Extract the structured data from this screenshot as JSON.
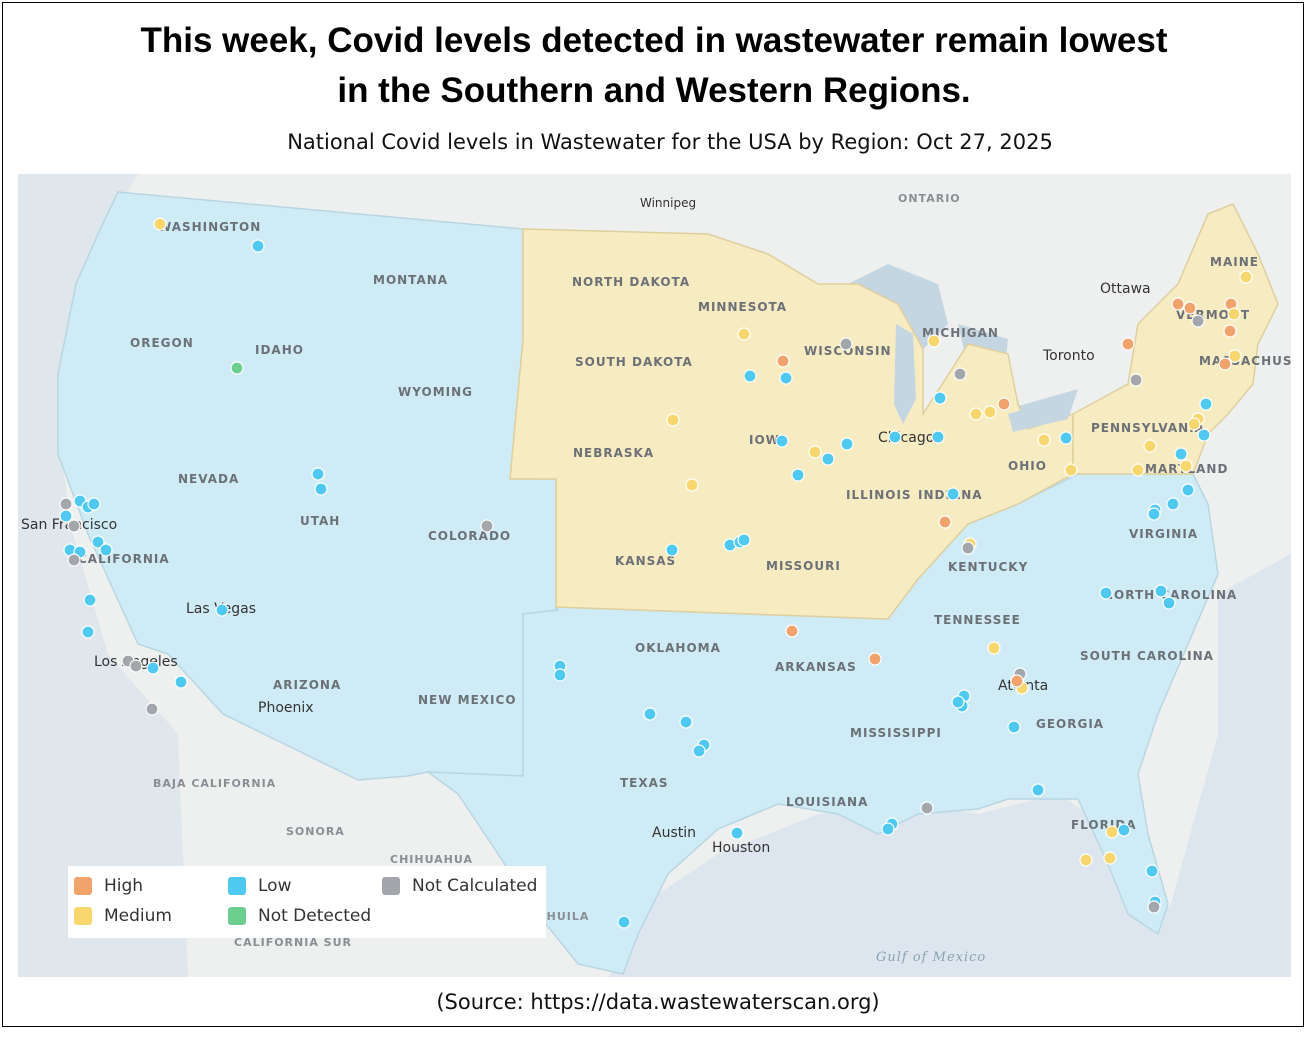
{
  "header": {
    "title_line1": "This week, Covid levels detected in wastewater remain lowest",
    "title_line2": "in the Southern and Western Regions.",
    "subtitle": "National Covid levels in Wastewater for the USA by Region: Oct 27, 2025"
  },
  "colors": {
    "west_region": "#cfecf6",
    "south_region": "#cfecf6",
    "midwest_region": "#f7ebc2",
    "northeast_region": "#f7ebc2",
    "high": "#f0a46b",
    "medium": "#f7d66e",
    "low": "#4fc9f0",
    "not_detected": "#6dcf8f",
    "not_calculated": "#a3a6ab"
  },
  "legend": {
    "high": "High",
    "medium": "Medium",
    "low": "Low",
    "not_detected": "Not Detected",
    "not_calculated": "Not Calculated"
  },
  "map_labels": {
    "states": [
      "WASHINGTON",
      "MONTANA",
      "OREGON",
      "IDAHO",
      "WYOMING",
      "NEVADA",
      "UTAH",
      "COLORADO",
      "CALIFORNIA",
      "ARIZONA",
      "NEW MEXICO",
      "NORTH DAKOTA",
      "SOUTH DAKOTA",
      "NEBRASKA",
      "KANSAS",
      "MINNESOTA",
      "IOWA",
      "MISSOURI",
      "WISCONSIN",
      "ILLINOIS",
      "MICHIGAN",
      "INDIANA",
      "OHIO",
      "OKLAHOMA",
      "TEXAS",
      "ARKANSAS",
      "LOUISIANA",
      "MISSISSIPPI",
      "TENNESSEE",
      "KENTUCKY",
      "GEORGIA",
      "FLORIDA",
      "SOUTH CAROLINA",
      "NORTH CAROLINA",
      "VIRGINIA",
      "PENNSYLVANIA",
      "MARYLAND",
      "MAINE",
      "VERMONT",
      "MASSACHUSETTS"
    ],
    "cities": [
      "San Francisco",
      "Los Angeles",
      "Las Vegas",
      "Phoenix",
      "Austin",
      "Houston",
      "Atlanta",
      "Chicago",
      "Toronto",
      "Ottawa",
      "Winnipeg"
    ],
    "foreign": [
      "ONTARIO",
      "BAJA CALIFORNIA",
      "SONORA",
      "CHIHUAHUA",
      "COAHUILA",
      "CALIFORNIA SUR"
    ],
    "water": "Gulf of Mexico"
  },
  "footer": {
    "source": "(Source: https://data.wastewaterscan.org)"
  }
}
